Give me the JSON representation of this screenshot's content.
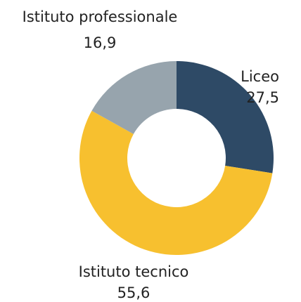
{
  "chart_data": {
    "type": "donut",
    "categories": [
      "Liceo",
      "Istituto tecnico",
      "Istituto professionale"
    ],
    "values": [
      27.5,
      55.6,
      16.9
    ],
    "value_labels": [
      "27,5",
      "55,6",
      "16,9"
    ],
    "colors": [
      "#2e4a66",
      "#f7c02f",
      "#97a4ad"
    ]
  }
}
